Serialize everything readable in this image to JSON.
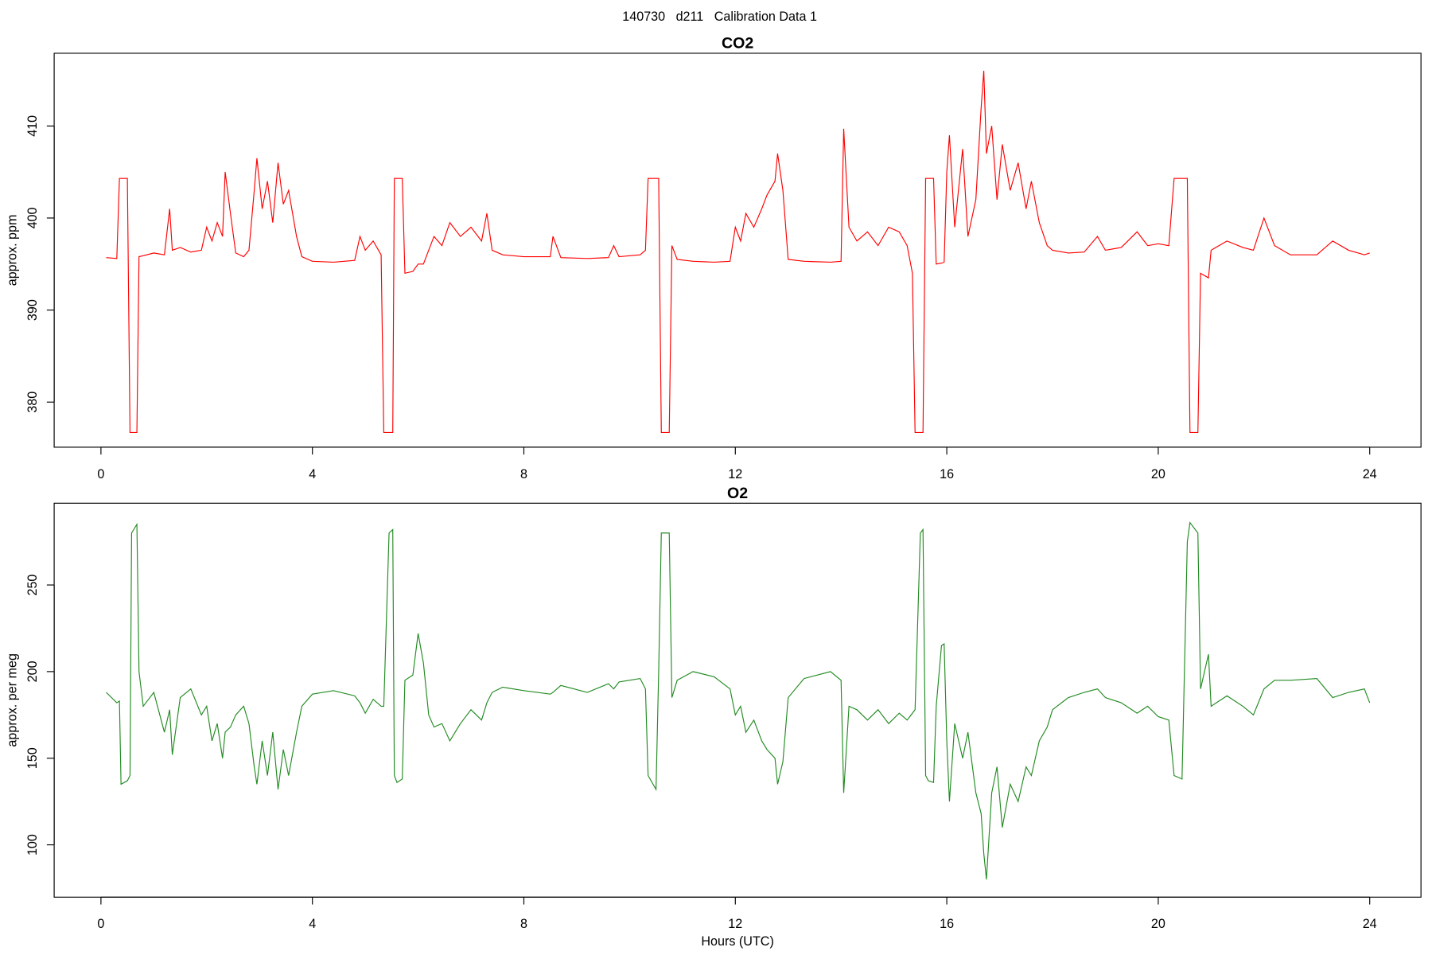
{
  "title": "140730   d211   Calibration Data 1",
  "chart_data": [
    {
      "type": "line",
      "title": "CO2",
      "ylabel": "approx. ppm",
      "xlim": [
        -0.885,
        24.97
      ],
      "xticks": [
        0,
        4,
        8,
        12,
        16,
        20,
        24
      ],
      "ylim": [
        375.1,
        417.9
      ],
      "yticks": [
        380,
        390,
        400,
        410
      ],
      "series": [
        {
          "name": "CO2",
          "color": "#ff0000",
          "x": [
            0.1,
            0.3,
            0.35,
            0.38,
            0.5,
            0.55,
            0.58,
            0.68,
            0.72,
            0.8,
            1.0,
            1.2,
            1.3,
            1.35,
            1.5,
            1.7,
            1.9,
            2.0,
            2.1,
            2.2,
            2.3,
            2.35,
            2.45,
            2.55,
            2.7,
            2.8,
            2.9,
            2.95,
            3.05,
            3.15,
            3.25,
            3.35,
            3.45,
            3.55,
            3.7,
            3.8,
            4.0,
            4.4,
            4.8,
            4.9,
            5.0,
            5.15,
            5.3,
            5.35,
            5.45,
            5.52,
            5.55,
            5.6,
            5.7,
            5.75,
            5.9,
            6.0,
            6.1,
            6.2,
            6.3,
            6.45,
            6.6,
            6.8,
            7.0,
            7.2,
            7.3,
            7.4,
            7.6,
            8.0,
            8.5,
            8.55,
            8.7,
            9.2,
            9.6,
            9.7,
            9.8,
            10.2,
            10.3,
            10.35,
            10.5,
            10.55,
            10.6,
            10.75,
            10.8,
            10.9,
            11.2,
            11.6,
            11.9,
            12.0,
            12.1,
            12.2,
            12.35,
            12.5,
            12.6,
            12.75,
            12.8,
            12.9,
            13.0,
            13.3,
            13.8,
            14.0,
            14.05,
            14.15,
            14.3,
            14.5,
            14.7,
            14.9,
            15.1,
            15.25,
            15.35,
            15.4,
            15.5,
            15.55,
            15.6,
            15.65,
            15.75,
            15.8,
            15.9,
            15.95,
            16.0,
            16.05,
            16.15,
            16.3,
            16.4,
            16.55,
            16.65,
            16.7,
            16.75,
            16.85,
            16.95,
            17.05,
            17.2,
            17.35,
            17.5,
            17.6,
            17.75,
            17.9,
            18.0,
            18.3,
            18.6,
            18.85,
            19.0,
            19.3,
            19.6,
            19.8,
            20.0,
            20.2,
            20.3,
            20.45,
            20.55,
            20.6,
            20.75,
            20.8,
            20.95,
            21.0,
            21.3,
            21.6,
            21.8,
            22.0,
            22.2,
            22.5,
            23.0,
            23.3,
            23.6,
            23.9,
            24.0
          ],
          "values": [
            395.7,
            395.6,
            404.3,
            404.3,
            404.3,
            376.7,
            376.7,
            376.7,
            395.8,
            395.9,
            396.2,
            396.0,
            401.0,
            396.5,
            396.8,
            396.3,
            396.5,
            399.0,
            397.5,
            399.5,
            398.0,
            405.0,
            400.5,
            396.2,
            395.8,
            396.5,
            403.0,
            406.5,
            401.0,
            404.0,
            399.5,
            406.0,
            401.5,
            403.0,
            398.0,
            395.8,
            395.3,
            395.2,
            395.4,
            398.0,
            396.5,
            397.5,
            396.0,
            376.7,
            376.7,
            376.7,
            404.3,
            404.3,
            404.3,
            394.0,
            394.2,
            395.0,
            395.0,
            396.5,
            398.0,
            397.0,
            399.5,
            398.0,
            399.0,
            397.5,
            400.5,
            396.5,
            396.0,
            395.8,
            395.8,
            398.0,
            395.7,
            395.6,
            395.7,
            397.0,
            395.8,
            396.0,
            396.5,
            404.3,
            404.3,
            404.3,
            376.7,
            376.7,
            397.0,
            395.5,
            395.3,
            395.2,
            395.3,
            399.0,
            397.5,
            400.5,
            399.0,
            401.0,
            402.5,
            404.0,
            407.0,
            403.0,
            395.5,
            395.3,
            395.2,
            395.3,
            409.7,
            399.0,
            397.5,
            398.5,
            397.0,
            399.0,
            398.5,
            397.0,
            394.0,
            376.7,
            376.7,
            376.7,
            404.3,
            404.3,
            404.3,
            395.0,
            395.1,
            395.2,
            405.0,
            409.0,
            399.0,
            407.5,
            398.0,
            402.0,
            412.0,
            416.0,
            407.0,
            410.0,
            402.0,
            408.0,
            403.0,
            406.0,
            401.0,
            404.0,
            399.5,
            397.0,
            396.5,
            396.2,
            396.3,
            398.0,
            396.5,
            396.8,
            398.5,
            397.0,
            397.2,
            397.0,
            404.3,
            404.3,
            404.3,
            376.7,
            376.7,
            394.0,
            393.5,
            396.5,
            397.5,
            396.8,
            396.5,
            400.0,
            397.0,
            396.0,
            396.0,
            397.5,
            396.5,
            396.0,
            396.2
          ]
        }
      ]
    },
    {
      "type": "line",
      "title": "O2",
      "ylabel": "approx. per meg",
      "xlabel": "Hours (UTC)",
      "xlim": [
        -0.885,
        24.97
      ],
      "xticks": [
        0,
        4,
        8,
        12,
        16,
        20,
        24
      ],
      "ylim": [
        69.8,
        297.2
      ],
      "yticks": [
        100,
        150,
        200,
        250
      ],
      "series": [
        {
          "name": "O2",
          "color": "#228b22",
          "x": [
            0.1,
            0.3,
            0.35,
            0.38,
            0.5,
            0.55,
            0.58,
            0.68,
            0.72,
            0.8,
            1.0,
            1.2,
            1.3,
            1.35,
            1.5,
            1.7,
            1.9,
            2.0,
            2.1,
            2.2,
            2.3,
            2.35,
            2.45,
            2.55,
            2.7,
            2.8,
            2.9,
            2.95,
            3.05,
            3.15,
            3.25,
            3.35,
            3.45,
            3.55,
            3.7,
            3.8,
            4.0,
            4.4,
            4.8,
            4.9,
            5.0,
            5.15,
            5.3,
            5.35,
            5.45,
            5.52,
            5.55,
            5.6,
            5.7,
            5.75,
            5.9,
            6.0,
            6.1,
            6.2,
            6.3,
            6.45,
            6.6,
            6.8,
            7.0,
            7.2,
            7.3,
            7.4,
            7.6,
            8.0,
            8.5,
            8.55,
            8.7,
            9.2,
            9.6,
            9.7,
            9.8,
            10.2,
            10.3,
            10.35,
            10.5,
            10.55,
            10.6,
            10.75,
            10.8,
            10.9,
            11.2,
            11.6,
            11.9,
            12.0,
            12.1,
            12.2,
            12.35,
            12.5,
            12.6,
            12.75,
            12.8,
            12.9,
            13.0,
            13.3,
            13.8,
            14.0,
            14.05,
            14.15,
            14.3,
            14.5,
            14.7,
            14.9,
            15.1,
            15.25,
            15.35,
            15.4,
            15.5,
            15.55,
            15.6,
            15.65,
            15.75,
            15.8,
            15.9,
            15.95,
            16.0,
            16.05,
            16.15,
            16.3,
            16.4,
            16.55,
            16.65,
            16.7,
            16.75,
            16.85,
            16.95,
            17.05,
            17.2,
            17.35,
            17.5,
            17.6,
            17.75,
            17.9,
            18.0,
            18.3,
            18.6,
            18.85,
            19.0,
            19.3,
            19.6,
            19.8,
            20.0,
            20.2,
            20.3,
            20.45,
            20.55,
            20.6,
            20.75,
            20.8,
            20.95,
            21.0,
            21.3,
            21.6,
            21.8,
            22.0,
            22.2,
            22.5,
            23.0,
            23.3,
            23.6,
            23.9,
            24.0
          ],
          "values": [
            188,
            182,
            183,
            135,
            137,
            140,
            280,
            285,
            200,
            180,
            188,
            165,
            178,
            152,
            185,
            190,
            175,
            180,
            160,
            170,
            150,
            165,
            168,
            175,
            180,
            170,
            145,
            135,
            160,
            140,
            165,
            132,
            155,
            140,
            165,
            180,
            187,
            189,
            186,
            182,
            176,
            184,
            180,
            180,
            280,
            282,
            140,
            136,
            138,
            195,
            198,
            222,
            205,
            175,
            168,
            170,
            160,
            170,
            178,
            172,
            182,
            188,
            191,
            189,
            187,
            188,
            192,
            188,
            193,
            190,
            194,
            196,
            190,
            140,
            132,
            200,
            280,
            280,
            185,
            195,
            200,
            197,
            190,
            175,
            180,
            165,
            172,
            160,
            155,
            150,
            135,
            148,
            185,
            196,
            200,
            195,
            130,
            180,
            178,
            172,
            178,
            170,
            176,
            172,
            176,
            178,
            280,
            282,
            140,
            137,
            136,
            180,
            215,
            216,
            160,
            125,
            170,
            150,
            165,
            130,
            118,
            95,
            80,
            130,
            145,
            110,
            135,
            125,
            145,
            140,
            160,
            168,
            178,
            185,
            188,
            190,
            185,
            182,
            176,
            180,
            174,
            172,
            140,
            138,
            275,
            286,
            280,
            190,
            210,
            180,
            186,
            180,
            175,
            190,
            195,
            195,
            196,
            185,
            188,
            190,
            182
          ]
        }
      ]
    }
  ]
}
